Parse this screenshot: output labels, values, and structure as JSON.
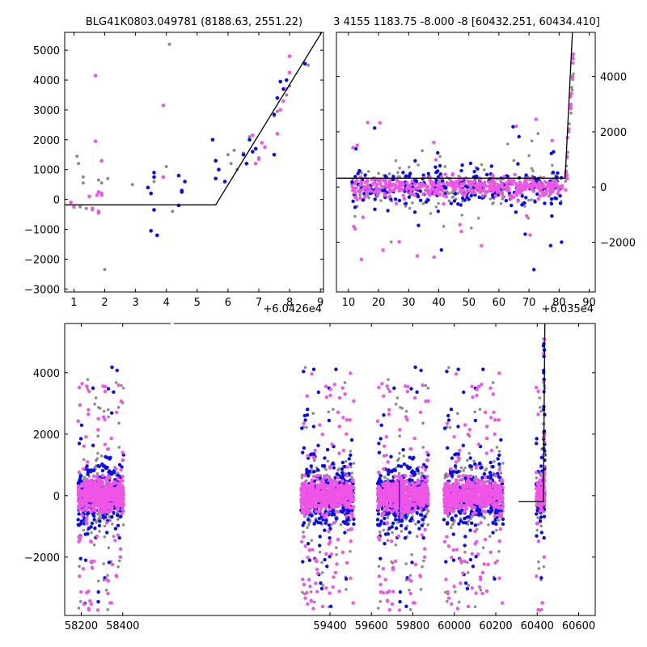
{
  "panels": {
    "top_left": {
      "title": "BLG41K0803.049781 (8188.63, 2551.22)",
      "offset_label": "+6.0426e4",
      "xlim": [
        0.7,
        9.1
      ],
      "ylim": [
        -3100,
        5600
      ],
      "xticks": [
        1,
        2,
        3,
        4,
        5,
        6,
        7,
        8,
        9
      ],
      "yticks": [
        -3000,
        -2000,
        -1000,
        0,
        1000,
        2000,
        3000,
        4000,
        5000
      ]
    },
    "top_right": {
      "title": "3 4155 1183.75 -8.000 -8 [60432.251, 60434.410]",
      "offset_label": "+6.035e4",
      "xlim": [
        6,
        92
      ],
      "ylim": [
        -3800,
        5600
      ],
      "xticks": [
        10,
        20,
        30,
        40,
        50,
        60,
        70,
        80,
        90
      ],
      "yticks": [
        -2000,
        0,
        2000,
        4000
      ]
    },
    "bottom": {
      "offset_label": "",
      "xlim": [
        58120,
        60680
      ],
      "ylim": [
        -3900,
        5600
      ],
      "xticks": [
        58200,
        58400,
        59400,
        59600,
        59800,
        60000,
        60200,
        60400,
        60600
      ],
      "yticks": [
        -2000,
        0,
        2000,
        4000
      ]
    }
  },
  "chart_data": [
    {
      "type": "scatter",
      "panel": "top_left",
      "title": "BLG41K0803.049781 (8188.63, 2551.22)",
      "x_offset": 60426,
      "series": [],
      "points": {
        "gray": [
          [
            1.1,
            1450
          ],
          [
            1.15,
            1200
          ],
          [
            1.3,
            750
          ],
          [
            1.3,
            550
          ],
          [
            1.2,
            -250
          ],
          [
            1.4,
            -300
          ],
          [
            1.6,
            -350
          ],
          [
            1.8,
            650
          ],
          [
            1.9,
            550
          ],
          [
            2.0,
            -2350
          ],
          [
            2.1,
            700
          ],
          [
            2.9,
            500
          ],
          [
            3.6,
            600
          ],
          [
            4.0,
            1100
          ],
          [
            4.1,
            5200
          ],
          [
            4.2,
            -400
          ],
          [
            5.6,
            1300
          ],
          [
            6.1,
            1200
          ],
          [
            6.2,
            1650
          ],
          [
            6.5,
            1550
          ],
          [
            6.7,
            2100
          ],
          [
            7.0,
            1400
          ],
          [
            7.5,
            2800
          ],
          [
            7.6,
            2950
          ],
          [
            7.9,
            3500
          ],
          [
            8.6,
            4500
          ],
          [
            8.0,
            3800
          ],
          [
            6.0,
            1500
          ],
          [
            6.3,
            1000
          ]
        ],
        "blue": [
          [
            3.4,
            400
          ],
          [
            3.5,
            200
          ],
          [
            3.5,
            -1050
          ],
          [
            3.6,
            -350
          ],
          [
            3.7,
            -1200
          ],
          [
            3.6,
            750
          ],
          [
            3.6,
            900
          ],
          [
            4.4,
            800
          ],
          [
            4.5,
            250
          ],
          [
            4.6,
            600
          ],
          [
            4.5,
            300
          ],
          [
            4.4,
            -200
          ],
          [
            5.5,
            2000
          ],
          [
            5.6,
            1300
          ],
          [
            5.7,
            1000
          ],
          [
            5.6,
            700
          ],
          [
            5.9,
            600
          ],
          [
            6.5,
            1500
          ],
          [
            6.6,
            1200
          ],
          [
            6.7,
            2000
          ],
          [
            6.8,
            1600
          ],
          [
            7.5,
            2850
          ],
          [
            7.6,
            3400
          ],
          [
            7.7,
            3950
          ],
          [
            7.8,
            3700
          ],
          [
            7.9,
            4000
          ],
          [
            8.5,
            4550
          ],
          [
            7.5,
            1500
          ],
          [
            6.9,
            1700
          ]
        ],
        "pink": [
          [
            0.9,
            -100
          ],
          [
            1.0,
            -250
          ],
          [
            1.5,
            100
          ],
          [
            1.6,
            -300
          ],
          [
            1.7,
            4150
          ],
          [
            1.7,
            1950
          ],
          [
            1.8,
            -400
          ],
          [
            1.8,
            -450
          ],
          [
            1.9,
            150
          ],
          [
            1.9,
            1300
          ],
          [
            1.8,
            250
          ],
          [
            1.75,
            150
          ],
          [
            1.9,
            200
          ],
          [
            3.9,
            3150
          ],
          [
            3.9,
            750
          ],
          [
            6.8,
            2150
          ],
          [
            7.0,
            1350
          ],
          [
            7.1,
            1900
          ],
          [
            7.2,
            1750
          ],
          [
            7.7,
            3000
          ],
          [
            7.8,
            3300
          ],
          [
            7.9,
            3700
          ],
          [
            8.0,
            4250
          ],
          [
            8.0,
            4800
          ],
          [
            7.6,
            2200
          ],
          [
            6.9,
            1200
          ]
        ]
      },
      "model_line": [
        [
          0.7,
          -180
        ],
        [
          5.6,
          -180
        ],
        [
          9.1,
          5700
        ]
      ]
    },
    {
      "type": "scatter",
      "panel": "top_right",
      "title": "3 4155 1183.75 -8.000 -8 [60432.251, 60434.410]",
      "x_offset": 60350,
      "series": [],
      "model_line": [
        [
          6,
          320
        ],
        [
          82,
          320
        ],
        [
          84.5,
          5800
        ]
      ]
    },
    {
      "type": "scatter",
      "panel": "bottom",
      "series": [],
      "model_line": [
        [
          60310,
          -200
        ],
        [
          60430,
          -200
        ],
        [
          60437,
          5600
        ]
      ],
      "seasons": [
        [
          58185,
          58405
        ],
        [
          59260,
          59515
        ],
        [
          59630,
          59875
        ],
        [
          59950,
          60235
        ],
        [
          60395,
          60437
        ]
      ]
    }
  ],
  "colors": {
    "gray": "#8c8c8c",
    "blue": "#0a0aee",
    "pink": "#f055e6",
    "line": "#000000",
    "axis": "#000000"
  }
}
